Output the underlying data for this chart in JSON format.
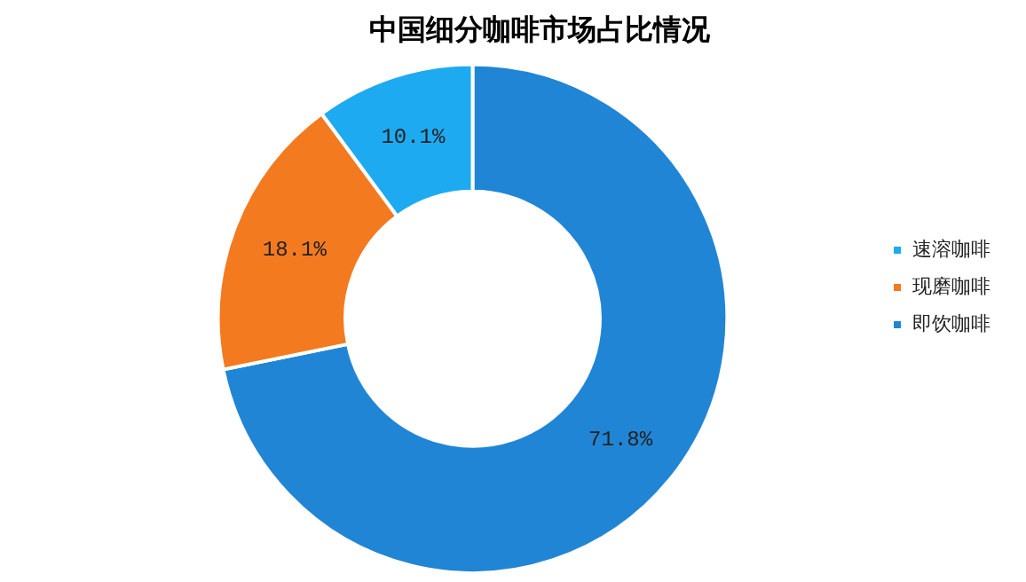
{
  "chart_data": {
    "type": "donut",
    "title": "中国细分咖啡市场占比情况",
    "categories": [
      "速溶咖啡",
      "现磨咖啡",
      "即饮咖啡"
    ],
    "values": [
      10.1,
      18.1,
      71.8
    ],
    "colors": [
      "#1eaaf1",
      "#f47a20",
      "#2185d6"
    ],
    "value_labels": [
      "10.1%",
      "18.1%",
      "71.8%"
    ],
    "legend": "right"
  }
}
